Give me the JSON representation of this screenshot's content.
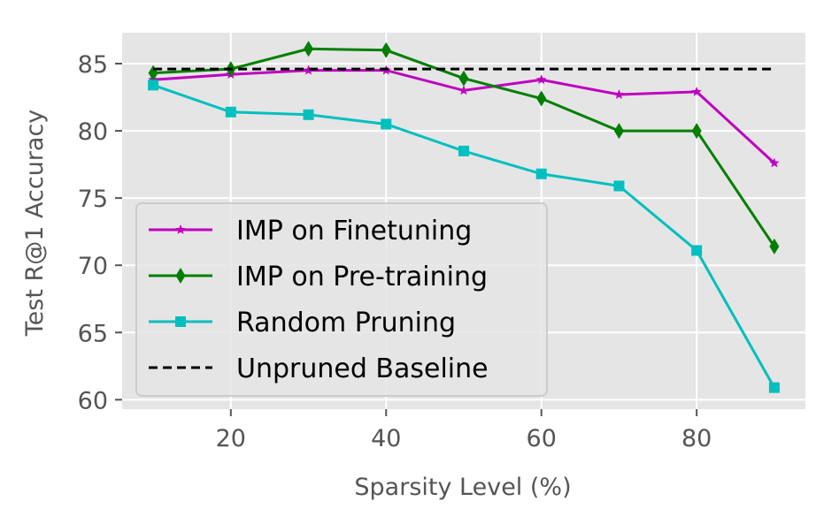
{
  "chart_data": {
    "type": "line",
    "title": "",
    "xlabel": "Sparsity Level (%)",
    "ylabel": "Test R@1  Accuracy",
    "xlim": [
      6,
      94
    ],
    "ylim": [
      59.3,
      87.3
    ],
    "xticks": [
      20,
      40,
      60,
      80
    ],
    "yticks": [
      60,
      65,
      70,
      75,
      80,
      85
    ],
    "grid": true,
    "legend_position": "lower-left",
    "background": "#e5e5e5",
    "x": [
      10,
      20,
      30,
      40,
      50,
      60,
      70,
      80,
      90
    ],
    "series": [
      {
        "name": "IMP on Finetuning",
        "color": "#bf00bf",
        "marker": "star",
        "linestyle": "solid",
        "values": [
          83.8,
          84.2,
          84.5,
          84.5,
          83.0,
          83.8,
          82.7,
          82.9,
          77.6
        ]
      },
      {
        "name": "IMP on Pre-training",
        "color": "#007f00",
        "marker": "diamond",
        "linestyle": "solid",
        "values": [
          84.3,
          84.6,
          86.1,
          86.0,
          83.9,
          82.4,
          80.0,
          80.0,
          71.4
        ]
      },
      {
        "name": "Random Pruning",
        "color": "#00bfbf",
        "marker": "square",
        "linestyle": "solid",
        "values": [
          83.4,
          81.4,
          81.2,
          80.5,
          78.5,
          76.8,
          75.9,
          71.1,
          60.9
        ]
      },
      {
        "name": "Unpruned Baseline",
        "color": "#000000",
        "marker": "none",
        "linestyle": "dashed",
        "values": [
          84.6,
          84.6,
          84.6,
          84.6,
          84.6,
          84.6,
          84.6,
          84.6,
          84.6
        ]
      }
    ]
  }
}
